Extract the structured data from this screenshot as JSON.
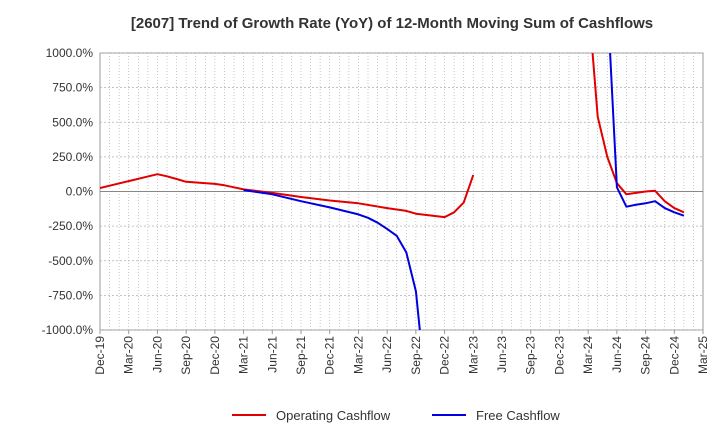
{
  "chart_data": {
    "type": "line",
    "title": "[2607]  Trend of Growth Rate (YoY) of 12-Month Moving Sum of Cashflows",
    "xlabel": "",
    "ylabel": "",
    "ylim": [
      -1000,
      1000
    ],
    "yticks": [
      {
        "value": 1000,
        "label": "1000.0%"
      },
      {
        "value": 750,
        "label": "750.0%"
      },
      {
        "value": 500,
        "label": "500.0%"
      },
      {
        "value": 250,
        "label": "250.0%"
      },
      {
        "value": 0,
        "label": "0.0%"
      },
      {
        "value": -250,
        "label": "-250.0%"
      },
      {
        "value": -500,
        "label": "-500.0%"
      },
      {
        "value": -750,
        "label": "-750.0%"
      },
      {
        "value": -1000,
        "label": "-1000.0%"
      }
    ],
    "xticks": [
      "Dec-19",
      "Mar-20",
      "Jun-20",
      "Sep-20",
      "Dec-20",
      "Mar-21",
      "Jun-21",
      "Sep-21",
      "Dec-21",
      "Mar-22",
      "Jun-22",
      "Sep-22",
      "Dec-22",
      "Mar-23",
      "Jun-23",
      "Sep-23",
      "Dec-23",
      "Mar-24",
      "Jun-24",
      "Sep-24",
      "Dec-24",
      "Mar-25"
    ],
    "grid": true,
    "legend_position": "bottom-center",
    "series": [
      {
        "name": "Operating Cashflow",
        "color": "#e00000",
        "points": [
          [
            "Dec-19",
            25
          ],
          [
            "Mar-20",
            75
          ],
          [
            "Jun-20",
            125
          ],
          [
            "Jul-20",
            110
          ],
          [
            "Aug-20",
            90
          ],
          [
            "Sep-20",
            70
          ],
          [
            "Dec-20",
            55
          ],
          [
            "Jan-21",
            45
          ],
          [
            "Feb-21",
            30
          ],
          [
            "Mar-21",
            15
          ],
          [
            "Jun-21",
            -10
          ],
          [
            "Sep-21",
            -40
          ],
          [
            "Dec-21",
            -65
          ],
          [
            "Mar-22",
            -85
          ],
          [
            "Jun-22",
            -120
          ],
          [
            "Jul-22",
            -130
          ],
          [
            "Aug-22",
            -140
          ],
          [
            "Sep-22",
            -160
          ],
          [
            "Dec-22",
            -185
          ],
          [
            "Jan-23",
            -150
          ],
          [
            "Feb-23",
            -80
          ],
          [
            "Mar-23",
            120
          ],
          [
            "Mar-24",
            1400
          ],
          [
            "Apr-24",
            540
          ],
          [
            "May-24",
            250
          ],
          [
            "Jun-24",
            60
          ],
          [
            "Jul-24",
            -20
          ],
          [
            "Aug-24",
            -10
          ],
          [
            "Sep-24",
            0
          ],
          [
            "Oct-24",
            5
          ],
          [
            "Nov-24",
            -70
          ],
          [
            "Dec-24",
            -120
          ],
          [
            "Jan-25",
            -150
          ]
        ]
      },
      {
        "name": "Free Cashflow",
        "color": "#0000e0",
        "points": [
          [
            "Mar-21",
            10
          ],
          [
            "Jun-21",
            -20
          ],
          [
            "Sep-21",
            -70
          ],
          [
            "Dec-21",
            -115
          ],
          [
            "Mar-22",
            -165
          ],
          [
            "Apr-22",
            -190
          ],
          [
            "May-22",
            -225
          ],
          [
            "Jun-22",
            -270
          ],
          [
            "Jul-22",
            -320
          ],
          [
            "Aug-22",
            -440
          ],
          [
            "Sep-22",
            -720
          ],
          [
            "Oct-22",
            -1400
          ],
          [
            "May-24",
            1400
          ],
          [
            "Jun-24",
            30
          ],
          [
            "Jul-24",
            -110
          ],
          [
            "Aug-24",
            -95
          ],
          [
            "Sep-24",
            -85
          ],
          [
            "Oct-24",
            -70
          ],
          [
            "Nov-24",
            -120
          ],
          [
            "Dec-24",
            -150
          ],
          [
            "Jan-25",
            -175
          ]
        ]
      }
    ]
  }
}
